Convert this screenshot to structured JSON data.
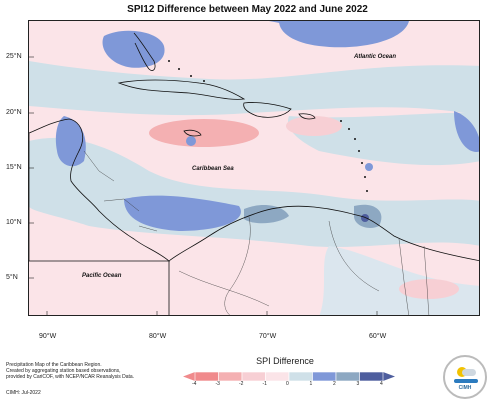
{
  "title": "SPI12 Difference between May 2022 and June 2022",
  "lat_labels": [
    "25°N",
    "20°N",
    "15°N",
    "10°N",
    "5°N"
  ],
  "lon_labels": [
    "90°W",
    "80°W",
    "70°W",
    "60°W"
  ],
  "extent": {
    "lon": [
      -93,
      -53
    ],
    "lat": [
      1,
      28
    ]
  },
  "region_labels": {
    "atlantic": "Atlantic Ocean",
    "caribbean": "Caribbean Sea",
    "pacific": "Pacific Ocean"
  },
  "footnote": {
    "line1": "Precipitation Map of the Caribbean Region.",
    "line2": "Created by aggregating station based observations,",
    "line3": "provided by CariCOF, with NCEP/NCAR Reanalysis Data.",
    "credit": "CIMH: Jul-2022"
  },
  "legend": {
    "title": "SPI Difference",
    "ticks": [
      "-4",
      "-3",
      "-2",
      "-1",
      "0",
      "1",
      "2",
      "3",
      "4"
    ],
    "colors": [
      "#f08a8c",
      "#f4b0b2",
      "#f7cfd4",
      "#fbe4e8",
      "#cfe0e8",
      "#7f98d8",
      "#8da8c2",
      "#4e5e9e"
    ]
  },
  "logo_text": "CIMH"
}
